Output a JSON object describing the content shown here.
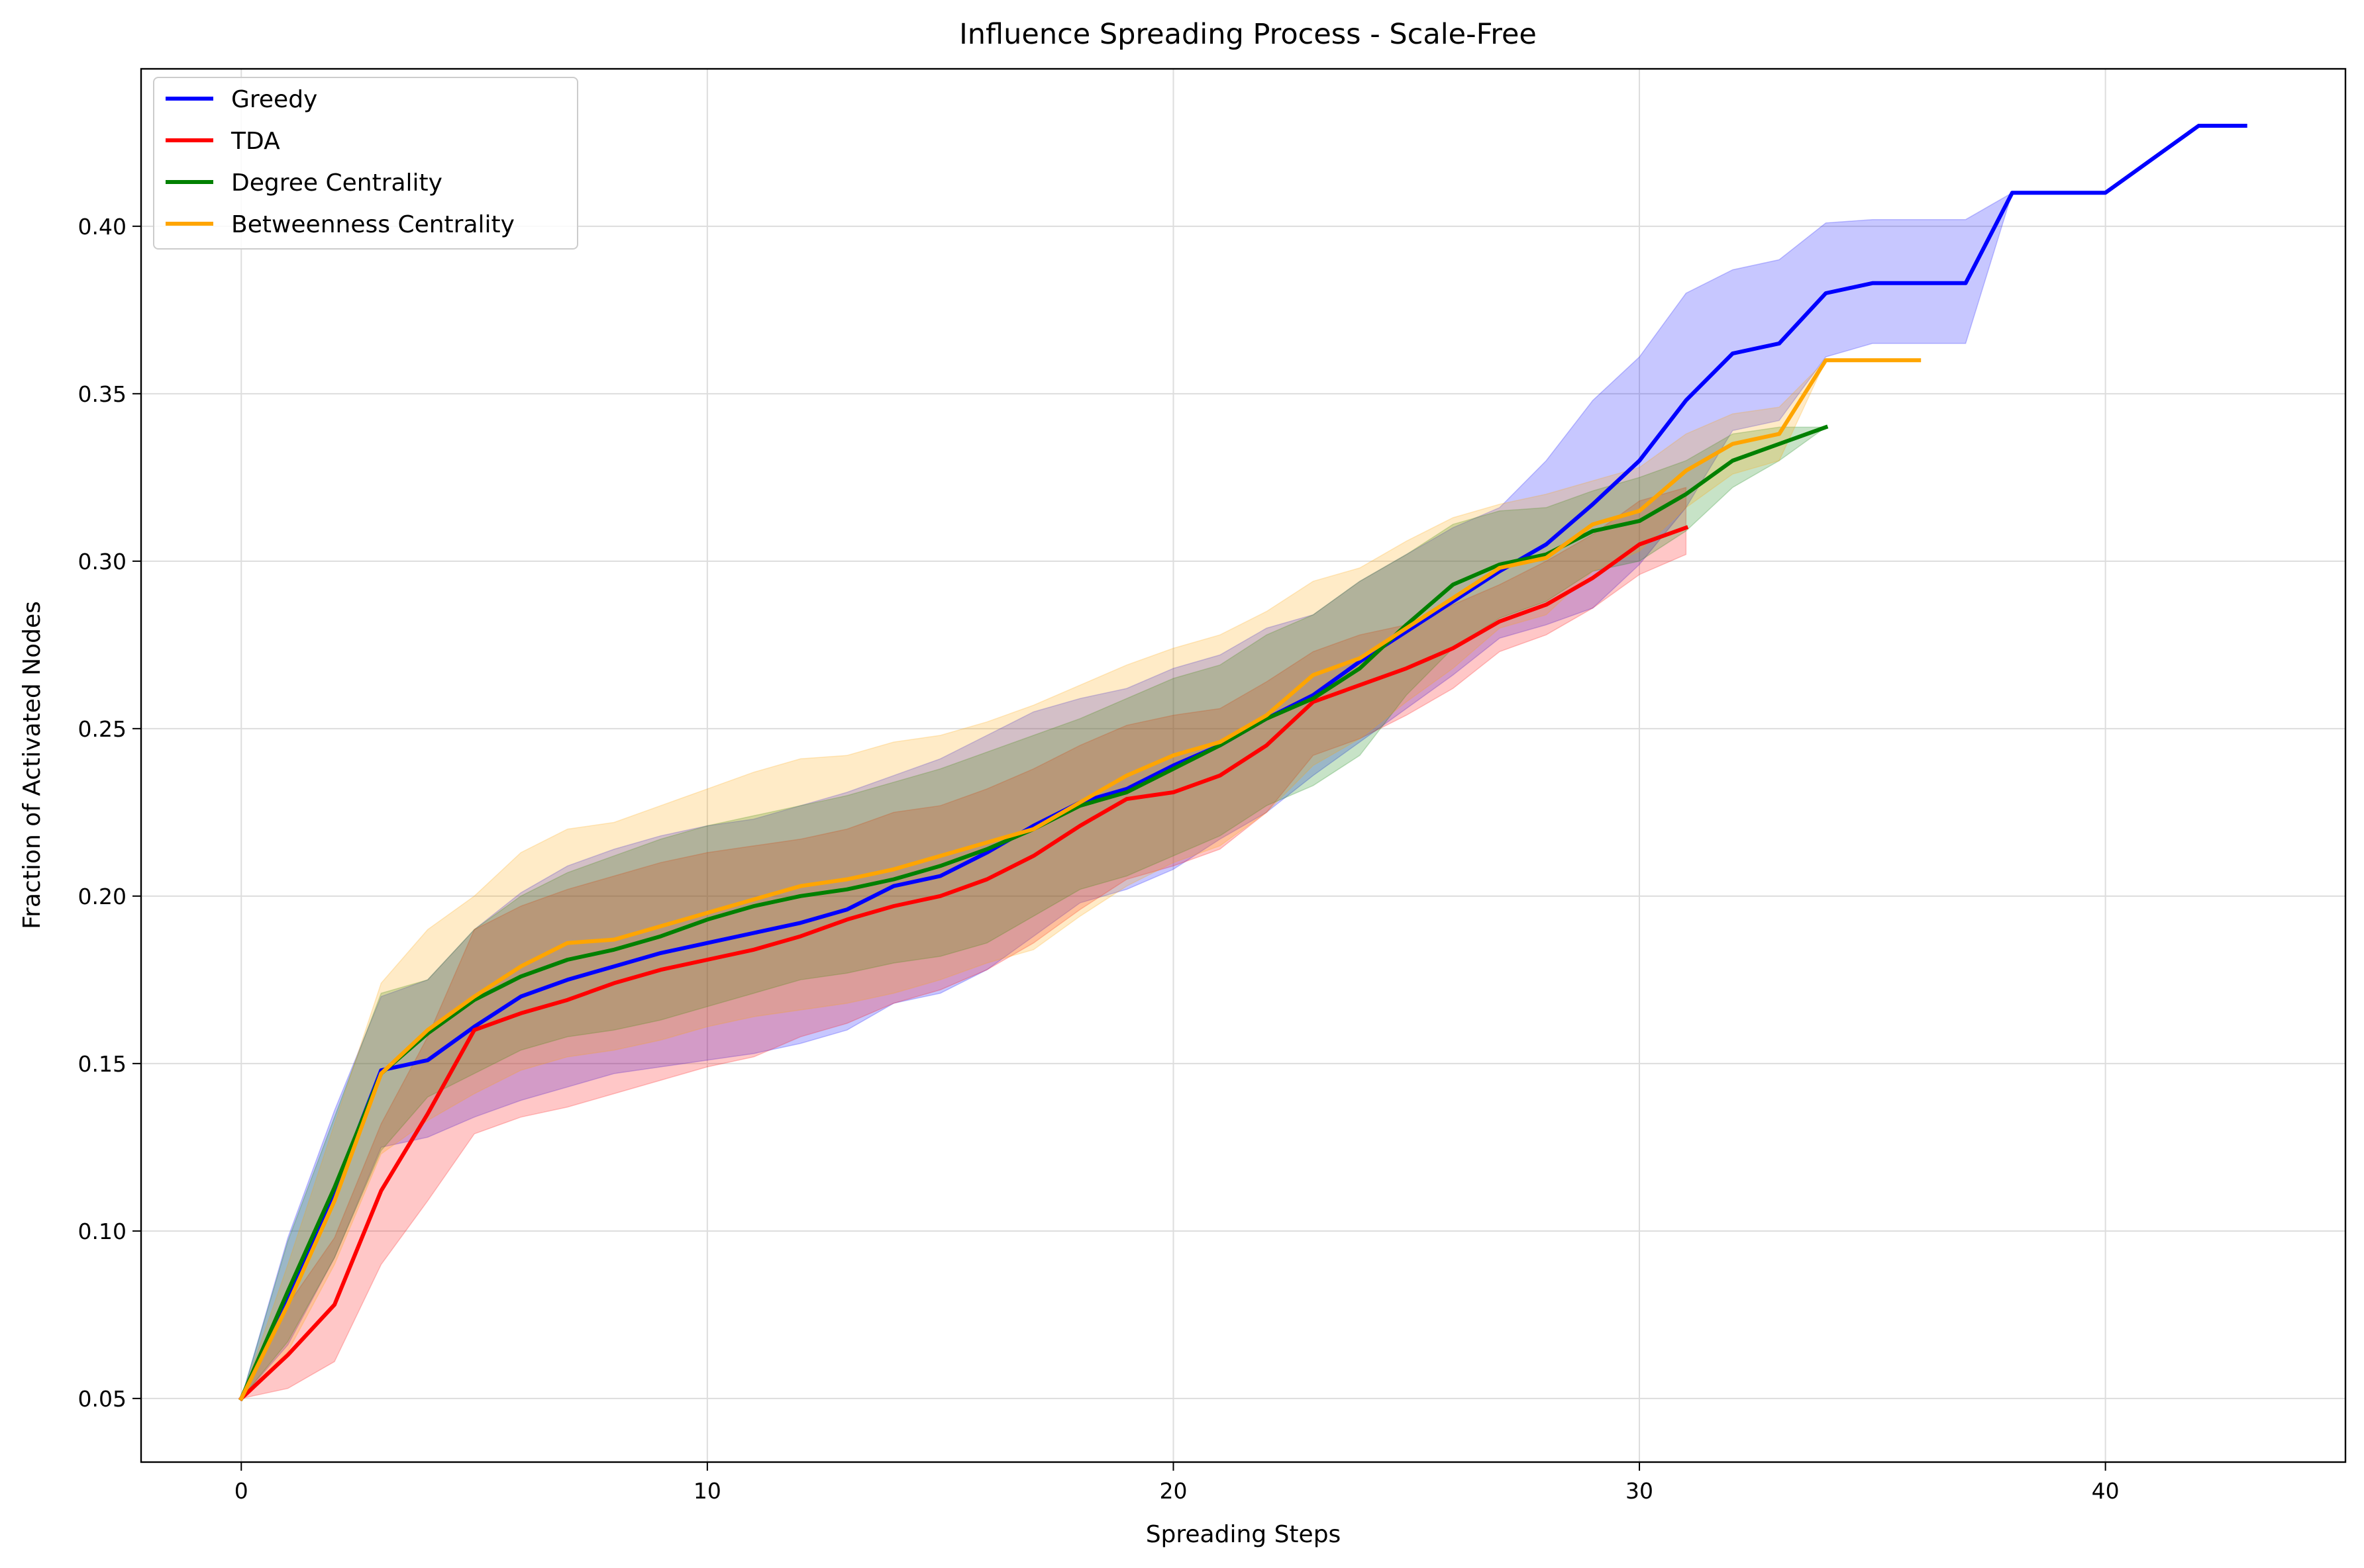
{
  "chart_data": {
    "type": "line",
    "title": "Influence Spreading Process - Scale-Free",
    "xlabel": "Spreading Steps",
    "ylabel": "Fraction of Activated Nodes",
    "xlim": [
      -2.15,
      45.15
    ],
    "ylim": [
      0.031,
      0.447
    ],
    "xticks": [
      0,
      10,
      20,
      30,
      40
    ],
    "yticks": [
      0.05,
      0.1,
      0.15,
      0.2,
      0.25,
      0.3,
      0.35,
      0.4
    ],
    "ytick_labels": [
      "0.05",
      "0.10",
      "0.15",
      "0.20",
      "0.25",
      "0.30",
      "0.35",
      "0.40"
    ],
    "grid": true,
    "legend_position": "upper-left",
    "band_opacity": 0.22,
    "series": [
      {
        "name": "Greedy",
        "color": "#0000ff",
        "x": [
          0,
          1,
          2,
          3,
          4,
          5,
          6,
          7,
          8,
          9,
          10,
          11,
          12,
          13,
          14,
          15,
          16,
          17,
          18,
          19,
          20,
          21,
          22,
          23,
          24,
          25,
          26,
          27,
          28,
          29,
          30,
          31,
          32,
          33,
          34,
          35,
          36,
          37,
          38,
          39,
          40,
          41,
          42,
          43
        ],
        "mean": [
          0.05,
          0.08,
          0.112,
          0.148,
          0.151,
          0.161,
          0.17,
          0.175,
          0.179,
          0.183,
          0.186,
          0.189,
          0.192,
          0.196,
          0.203,
          0.206,
          0.213,
          0.221,
          0.228,
          0.232,
          0.239,
          0.245,
          0.253,
          0.26,
          0.27,
          0.279,
          0.288,
          0.297,
          0.305,
          0.317,
          0.33,
          0.348,
          0.362,
          0.365,
          0.38,
          0.383,
          0.383,
          0.383,
          0.41,
          0.41,
          0.41,
          0.42,
          0.43,
          0.43
        ],
        "upper": [
          0.05,
          0.098,
          0.136,
          0.17,
          0.175,
          0.19,
          0.201,
          0.209,
          0.214,
          0.218,
          0.221,
          0.223,
          0.227,
          0.231,
          0.236,
          0.241,
          0.248,
          0.255,
          0.259,
          0.262,
          0.268,
          0.272,
          0.28,
          0.284,
          0.294,
          0.302,
          0.31,
          0.316,
          0.33,
          0.348,
          0.361,
          0.38,
          0.387,
          0.39,
          0.401,
          0.402,
          0.402,
          0.402,
          0.41,
          0.41,
          0.41,
          0.42,
          0.43,
          0.43
        ],
        "lower": [
          0.05,
          0.066,
          0.092,
          0.125,
          0.128,
          0.134,
          0.139,
          0.143,
          0.147,
          0.149,
          0.151,
          0.153,
          0.156,
          0.16,
          0.168,
          0.171,
          0.178,
          0.188,
          0.198,
          0.202,
          0.208,
          0.217,
          0.225,
          0.236,
          0.246,
          0.256,
          0.266,
          0.277,
          0.281,
          0.286,
          0.299,
          0.316,
          0.339,
          0.342,
          0.361,
          0.365,
          0.365,
          0.365,
          0.41,
          0.41,
          0.41,
          0.42,
          0.43,
          0.43
        ]
      },
      {
        "name": "TDA",
        "color": "#ff0000",
        "x": [
          0,
          1,
          2,
          3,
          4,
          5,
          6,
          7,
          8,
          9,
          10,
          11,
          12,
          13,
          14,
          15,
          16,
          17,
          18,
          19,
          20,
          21,
          22,
          23,
          24,
          25,
          26,
          27,
          28,
          29,
          30,
          31
        ],
        "mean": [
          0.05,
          0.063,
          0.078,
          0.112,
          0.135,
          0.16,
          0.165,
          0.169,
          0.174,
          0.178,
          0.181,
          0.184,
          0.188,
          0.193,
          0.197,
          0.2,
          0.205,
          0.212,
          0.221,
          0.229,
          0.231,
          0.236,
          0.245,
          0.258,
          0.263,
          0.268,
          0.274,
          0.282,
          0.287,
          0.295,
          0.305,
          0.31
        ],
        "upper": [
          0.05,
          0.078,
          0.098,
          0.132,
          0.158,
          0.19,
          0.197,
          0.202,
          0.206,
          0.21,
          0.213,
          0.215,
          0.217,
          0.22,
          0.225,
          0.227,
          0.232,
          0.238,
          0.245,
          0.251,
          0.254,
          0.256,
          0.264,
          0.273,
          0.278,
          0.281,
          0.287,
          0.293,
          0.3,
          0.308,
          0.318,
          0.322
        ],
        "lower": [
          0.05,
          0.053,
          0.061,
          0.09,
          0.109,
          0.129,
          0.134,
          0.137,
          0.141,
          0.145,
          0.149,
          0.152,
          0.158,
          0.162,
          0.168,
          0.172,
          0.178,
          0.186,
          0.196,
          0.205,
          0.209,
          0.214,
          0.225,
          0.242,
          0.247,
          0.254,
          0.262,
          0.273,
          0.278,
          0.286,
          0.296,
          0.302
        ]
      },
      {
        "name": "Degree Centrality",
        "color": "#008000",
        "x": [
          0,
          1,
          2,
          3,
          4,
          5,
          6,
          7,
          8,
          9,
          10,
          11,
          12,
          13,
          14,
          15,
          16,
          17,
          18,
          19,
          20,
          21,
          22,
          23,
          24,
          25,
          26,
          27,
          28,
          29,
          30,
          31,
          32,
          33,
          34
        ],
        "mean": [
          0.05,
          0.082,
          0.113,
          0.147,
          0.159,
          0.169,
          0.176,
          0.181,
          0.184,
          0.188,
          0.193,
          0.197,
          0.2,
          0.202,
          0.205,
          0.209,
          0.214,
          0.22,
          0.227,
          0.231,
          0.238,
          0.245,
          0.253,
          0.259,
          0.268,
          0.281,
          0.293,
          0.299,
          0.302,
          0.309,
          0.312,
          0.32,
          0.33,
          0.335,
          0.34
        ],
        "upper": [
          0.05,
          0.097,
          0.134,
          0.171,
          0.175,
          0.19,
          0.2,
          0.207,
          0.212,
          0.217,
          0.221,
          0.224,
          0.227,
          0.23,
          0.234,
          0.238,
          0.243,
          0.248,
          0.253,
          0.259,
          0.265,
          0.269,
          0.278,
          0.284,
          0.294,
          0.302,
          0.311,
          0.315,
          0.316,
          0.321,
          0.325,
          0.33,
          0.338,
          0.34,
          0.34
        ],
        "lower": [
          0.05,
          0.067,
          0.092,
          0.124,
          0.14,
          0.147,
          0.154,
          0.158,
          0.16,
          0.163,
          0.167,
          0.171,
          0.175,
          0.177,
          0.18,
          0.182,
          0.186,
          0.194,
          0.202,
          0.206,
          0.212,
          0.218,
          0.227,
          0.233,
          0.242,
          0.26,
          0.274,
          0.283,
          0.288,
          0.297,
          0.3,
          0.309,
          0.322,
          0.33,
          0.34
        ]
      },
      {
        "name": "Betweenness Centrality",
        "color": "#ffa500",
        "x": [
          0,
          1,
          2,
          3,
          4,
          5,
          6,
          7,
          8,
          9,
          10,
          11,
          12,
          13,
          14,
          15,
          16,
          17,
          18,
          19,
          20,
          21,
          22,
          23,
          24,
          25,
          26,
          27,
          28,
          29,
          30,
          31,
          32,
          33,
          34,
          35,
          36
        ],
        "mean": [
          0.05,
          0.078,
          0.109,
          0.147,
          0.16,
          0.17,
          0.179,
          0.186,
          0.187,
          0.191,
          0.195,
          0.199,
          0.203,
          0.205,
          0.208,
          0.212,
          0.216,
          0.22,
          0.228,
          0.236,
          0.242,
          0.246,
          0.254,
          0.266,
          0.271,
          0.28,
          0.289,
          0.298,
          0.301,
          0.311,
          0.315,
          0.327,
          0.335,
          0.338,
          0.36,
          0.36,
          0.36
        ],
        "upper": [
          0.05,
          0.09,
          0.132,
          0.174,
          0.19,
          0.2,
          0.213,
          0.22,
          0.222,
          0.227,
          0.232,
          0.237,
          0.241,
          0.242,
          0.246,
          0.248,
          0.252,
          0.257,
          0.263,
          0.269,
          0.274,
          0.278,
          0.285,
          0.294,
          0.298,
          0.306,
          0.313,
          0.317,
          0.32,
          0.324,
          0.328,
          0.338,
          0.344,
          0.346,
          0.36,
          0.36,
          0.36
        ],
        "lower": [
          0.05,
          0.064,
          0.09,
          0.123,
          0.133,
          0.141,
          0.148,
          0.152,
          0.154,
          0.157,
          0.161,
          0.164,
          0.166,
          0.168,
          0.171,
          0.175,
          0.18,
          0.184,
          0.194,
          0.203,
          0.21,
          0.215,
          0.225,
          0.239,
          0.247,
          0.258,
          0.268,
          0.28,
          0.284,
          0.297,
          0.303,
          0.316,
          0.326,
          0.33,
          0.36,
          0.36,
          0.36
        ]
      }
    ]
  }
}
